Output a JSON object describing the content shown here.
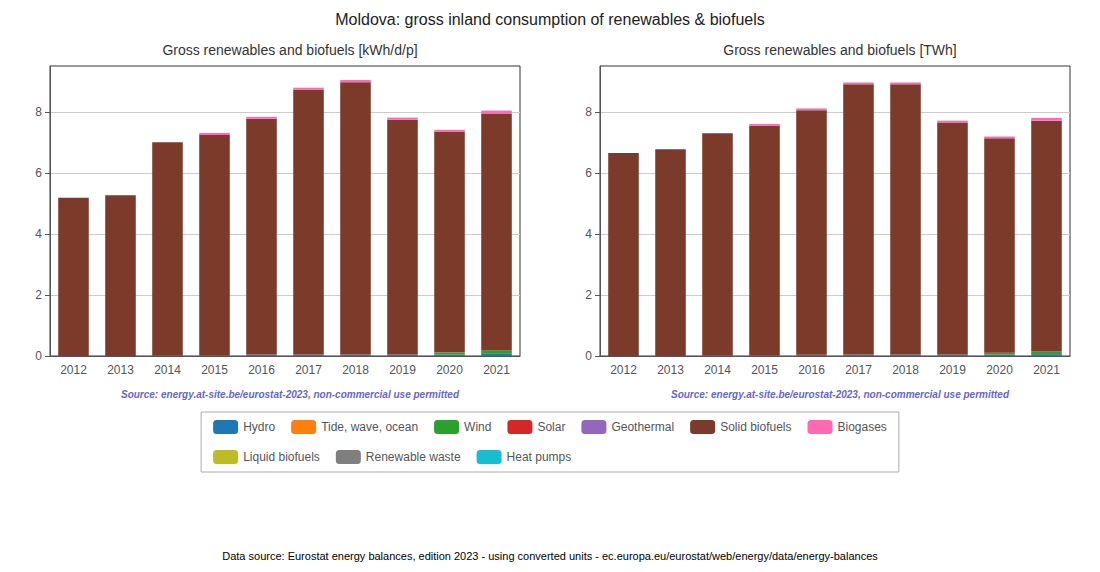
{
  "title": "Moldova: gross inland consumption of renewables & biofuels",
  "annotations": [
    "Data source: Eurostat energy balances, edition 2023 - using converted units - ec.europa.eu/eurostat/web/energy/data/energy-balances"
  ],
  "legend": "bottom",
  "chart_data": [
    {
      "type": "bar",
      "stacked": true,
      "grid": true,
      "title": "Gross renewables and biofuels [kWh/d/p]",
      "annotations": [
        "Source: energy.at-site.be/eurostat-2023, non-commercial use permitted"
      ],
      "categories": [
        "2012",
        "2013",
        "2014",
        "2015",
        "2016",
        "2017",
        "2018",
        "2019",
        "2020",
        "2021"
      ],
      "ylim": [
        0,
        9.5
      ],
      "yticks": [
        0,
        2,
        4,
        6,
        8
      ],
      "series": [
        {
          "name": "Hydro",
          "color": "#1f77b4",
          "values": [
            0.0,
            0.0,
            0.02,
            0.02,
            0.05,
            0.05,
            0.05,
            0.05,
            0.05,
            0.07
          ]
        },
        {
          "name": "Tide, wave, ocean",
          "color": "#ff7f0e",
          "values": [
            0.0,
            0.0,
            0.0,
            0.0,
            0.0,
            0.0,
            0.0,
            0.0,
            0.0,
            0.0
          ]
        },
        {
          "name": "Wind",
          "color": "#2ca02c",
          "values": [
            0.0,
            0.0,
            0.0,
            0.0,
            0.0,
            0.0,
            0.0,
            0.0,
            0.07,
            0.12
          ]
        },
        {
          "name": "Solar",
          "color": "#d62728",
          "values": [
            0.0,
            0.0,
            0.0,
            0.0,
            0.0,
            0.0,
            0.0,
            0.0,
            0.0,
            0.0
          ]
        },
        {
          "name": "Geothermal",
          "color": "#9467bd",
          "values": [
            0.0,
            0.0,
            0.0,
            0.0,
            0.0,
            0.0,
            0.0,
            0.0,
            0.0,
            0.0
          ]
        },
        {
          "name": "Solid biofuels",
          "color": "#7b3a2a",
          "values": [
            5.18,
            5.27,
            6.98,
            7.22,
            7.72,
            8.67,
            8.92,
            7.69,
            7.22,
            7.75
          ]
        },
        {
          "name": "Biogases",
          "color": "#ff69b4",
          "values": [
            0.0,
            0.0,
            0.0,
            0.07,
            0.07,
            0.07,
            0.07,
            0.07,
            0.07,
            0.1
          ]
        },
        {
          "name": "Liquid biofuels",
          "color": "#bcbd22",
          "values": [
            0.0,
            0.0,
            0.0,
            0.0,
            0.0,
            0.0,
            0.0,
            0.0,
            0.0,
            0.0
          ]
        },
        {
          "name": "Renewable waste",
          "color": "#7f7f7f",
          "values": [
            0.0,
            0.0,
            0.0,
            0.0,
            0.0,
            0.0,
            0.0,
            0.0,
            0.0,
            0.0
          ]
        },
        {
          "name": "Heat pumps",
          "color": "#17becf",
          "values": [
            0.0,
            0.0,
            0.0,
            0.0,
            0.0,
            0.0,
            0.0,
            0.0,
            0.0,
            0.0
          ]
        }
      ]
    },
    {
      "type": "bar",
      "stacked": true,
      "grid": true,
      "title": "Gross renewables and biofuels [TWh]",
      "annotations": [
        "Source: energy.at-site.be/eurostat-2023, non-commercial use permitted"
      ],
      "categories": [
        "2012",
        "2013",
        "2014",
        "2015",
        "2016",
        "2017",
        "2018",
        "2019",
        "2020",
        "2021"
      ],
      "ylim": [
        0,
        9.5
      ],
      "yticks": [
        0,
        2,
        4,
        6,
        8
      ],
      "series": [
        {
          "name": "Hydro",
          "color": "#1f77b4",
          "values": [
            0.0,
            0.0,
            0.02,
            0.02,
            0.04,
            0.05,
            0.05,
            0.05,
            0.05,
            0.06
          ]
        },
        {
          "name": "Tide, wave, ocean",
          "color": "#ff7f0e",
          "values": [
            0.0,
            0.0,
            0.0,
            0.0,
            0.0,
            0.0,
            0.0,
            0.0,
            0.0,
            0.0
          ]
        },
        {
          "name": "Wind",
          "color": "#2ca02c",
          "values": [
            0.0,
            0.0,
            0.0,
            0.0,
            0.0,
            0.0,
            0.0,
            0.0,
            0.06,
            0.1
          ]
        },
        {
          "name": "Solar",
          "color": "#d62728",
          "values": [
            0.0,
            0.0,
            0.0,
            0.0,
            0.0,
            0.0,
            0.0,
            0.0,
            0.0,
            0.0
          ]
        },
        {
          "name": "Geothermal",
          "color": "#9467bd",
          "values": [
            0.0,
            0.0,
            0.0,
            0.0,
            0.0,
            0.0,
            0.0,
            0.0,
            0.0,
            0.0
          ]
        },
        {
          "name": "Solid biofuels",
          "color": "#7b3a2a",
          "values": [
            6.65,
            6.77,
            7.28,
            7.52,
            8.01,
            8.85,
            8.85,
            7.6,
            7.02,
            7.55
          ]
        },
        {
          "name": "Biogases",
          "color": "#ff69b4",
          "values": [
            0.0,
            0.0,
            0.0,
            0.06,
            0.06,
            0.06,
            0.06,
            0.06,
            0.06,
            0.09
          ]
        },
        {
          "name": "Liquid biofuels",
          "color": "#bcbd22",
          "values": [
            0.0,
            0.0,
            0.0,
            0.0,
            0.0,
            0.0,
            0.0,
            0.0,
            0.0,
            0.0
          ]
        },
        {
          "name": "Renewable waste",
          "color": "#7f7f7f",
          "values": [
            0.0,
            0.0,
            0.0,
            0.0,
            0.0,
            0.0,
            0.0,
            0.0,
            0.0,
            0.0
          ]
        },
        {
          "name": "Heat pumps",
          "color": "#17becf",
          "values": [
            0.0,
            0.0,
            0.0,
            0.0,
            0.0,
            0.0,
            0.0,
            0.0,
            0.0,
            0.0
          ]
        }
      ]
    }
  ]
}
